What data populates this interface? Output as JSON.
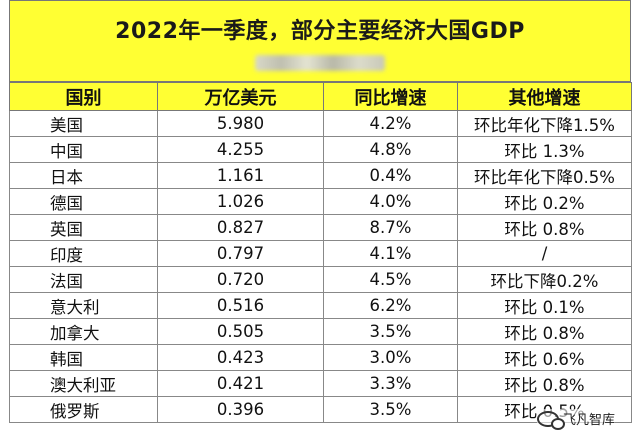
{
  "title": "2022年一季度，部分主要经济大国GDP",
  "table": {
    "headers": [
      "国别",
      "万亿美元",
      "同比增速",
      "其他增速"
    ],
    "rows": [
      {
        "country": "美国",
        "gdp": "5.980",
        "yoy": "4.2%",
        "other": "环比年化下降1.5%"
      },
      {
        "country": "中国",
        "gdp": "4.255",
        "yoy": "4.8%",
        "other": "环比 1.3%"
      },
      {
        "country": "日本",
        "gdp": "1.161",
        "yoy": "0.4%",
        "other": "环比年化下降0.5%"
      },
      {
        "country": "德国",
        "gdp": "1.026",
        "yoy": "4.0%",
        "other": "环比 0.2%"
      },
      {
        "country": "英国",
        "gdp": "0.827",
        "yoy": "8.7%",
        "other": "环比 0.8%"
      },
      {
        "country": "印度",
        "gdp": "0.797",
        "yoy": "4.1%",
        "other": "/"
      },
      {
        "country": "法国",
        "gdp": "0.720",
        "yoy": "4.5%",
        "other": "环比下降0.2%"
      },
      {
        "country": "意大利",
        "gdp": "0.516",
        "yoy": "6.2%",
        "other": "环比 0.1%"
      },
      {
        "country": "加拿大",
        "gdp": "0.505",
        "yoy": "3.5%",
        "other": "环比 0.8%"
      },
      {
        "country": "韩国",
        "gdp": "0.423",
        "yoy": "3.0%",
        "other": "环比 0.6%"
      },
      {
        "country": "澳大利亚",
        "gdp": "0.421",
        "yoy": "3.3%",
        "other": "环比 0.8%"
      },
      {
        "country": "俄罗斯",
        "gdp": "0.396",
        "yoy": "3.5%",
        "other": "环比 0.5%"
      }
    ]
  },
  "watermark": {
    "text": "飞凡智库",
    "icon": "wechat-icon"
  },
  "colors": {
    "header_bg": "#ffff33",
    "border": "#777777"
  }
}
